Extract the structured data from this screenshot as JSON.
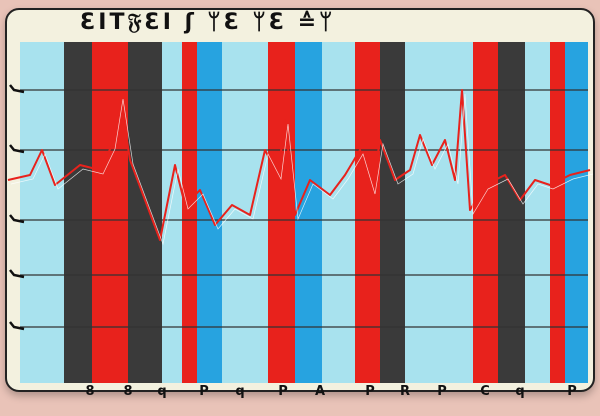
{
  "chart_data": {
    "type": "line",
    "title": "ƐIT𝔉ƐI ʃ ᛘƐ ᛘƐ ≙ᛘ",
    "x_tick_labels": [
      "8",
      "8",
      "q",
      "P",
      "q",
      "P",
      "A",
      "P",
      "R",
      "P",
      "C",
      "q",
      "P"
    ],
    "grid": true,
    "background_bands": [
      {
        "color": "#3a3a3a",
        "from": 64,
        "to": 92
      },
      {
        "color": "#e8221c",
        "from": 92,
        "to": 128
      },
      {
        "color": "#3a3a3a",
        "from": 128,
        "to": 162
      },
      {
        "color": "#e8221c",
        "from": 182,
        "to": 197
      },
      {
        "color": "#27a3e0",
        "from": 197,
        "to": 222
      },
      {
        "color": "#e8221c",
        "from": 268,
        "to": 295
      },
      {
        "color": "#27a3e0",
        "from": 295,
        "to": 322
      },
      {
        "color": "#e8221c",
        "from": 355,
        "to": 380
      },
      {
        "color": "#3a3a3a",
        "from": 380,
        "to": 405
      },
      {
        "color": "#e8221c",
        "from": 473,
        "to": 498
      },
      {
        "color": "#3a3a3a",
        "from": 498,
        "to": 525
      },
      {
        "color": "#e8221c",
        "from": 550,
        "to": 565
      },
      {
        "color": "#27a3e0",
        "from": 565,
        "to": 588
      }
    ],
    "series": [
      {
        "color": "#e8221c",
        "x": [
          8,
          30,
          42,
          55,
          80,
          100,
          112,
          120,
          130,
          145,
          160,
          175,
          185,
          200,
          215,
          232,
          250,
          265,
          278,
          285,
          295,
          310,
          330,
          345,
          360,
          372,
          380,
          395,
          410,
          420,
          432,
          445,
          455,
          462,
          470,
          485,
          505,
          520,
          535,
          550,
          570,
          590
        ],
        "y": [
          180,
          175,
          150,
          185,
          165,
          170,
          145,
          95,
          160,
          200,
          240,
          165,
          205,
          190,
          225,
          205,
          215,
          150,
          175,
          120,
          215,
          180,
          195,
          175,
          150,
          190,
          140,
          180,
          170,
          135,
          165,
          140,
          180,
          90,
          210,
          185,
          175,
          200,
          180,
          185,
          175,
          170
        ]
      }
    ],
    "colors": {
      "plot_bg": "#a8e2ee",
      "line": "#e8221c",
      "gridline": "#333333"
    }
  }
}
